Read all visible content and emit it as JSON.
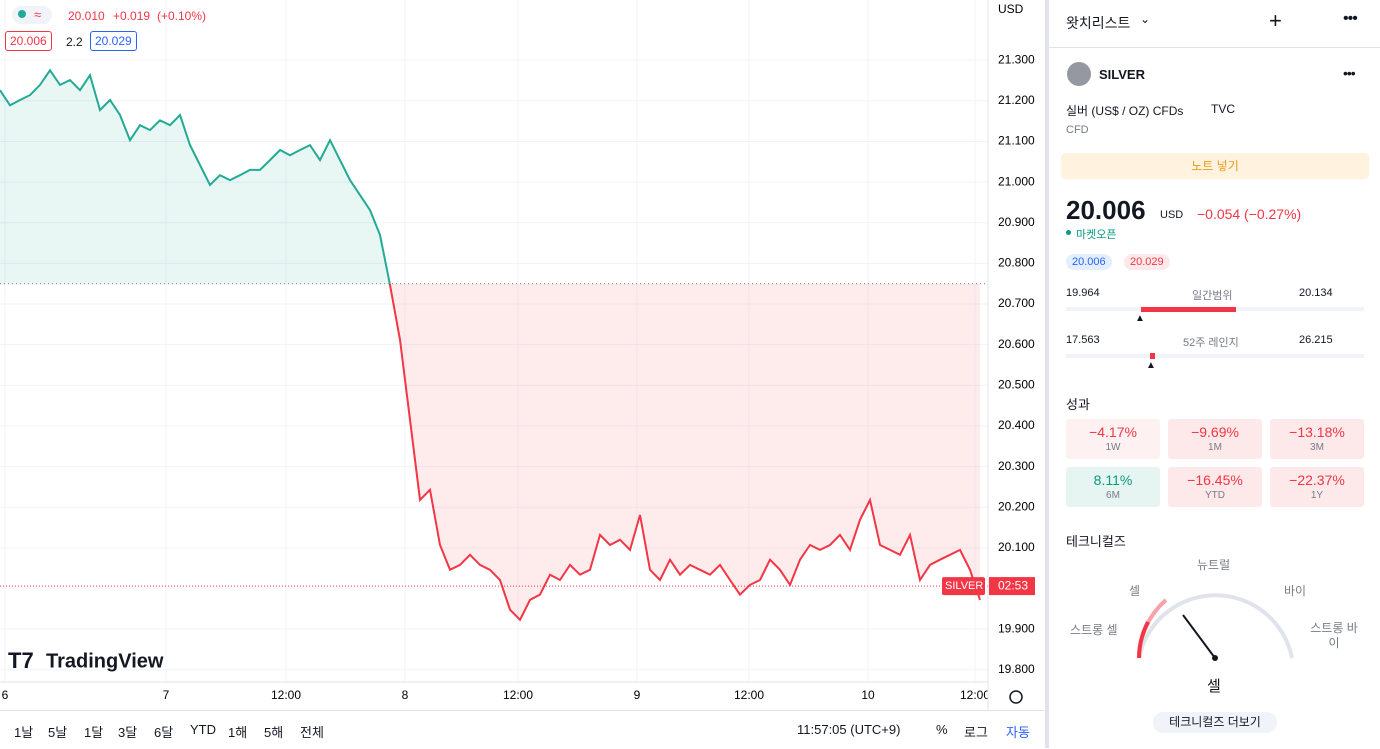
{
  "legend": {
    "badge": "≈",
    "last": "20.010",
    "change": "+0.019",
    "change_pct": "(+0.10%)",
    "bid": "20.006",
    "spread": "2.2",
    "ask": "20.029"
  },
  "chart_data": {
    "type": "line",
    "currency": "USD",
    "watermark": "TradingView",
    "series": [
      {
        "name": "SILVER",
        "values": [
          21.226,
          21.189,
          21.202,
          21.214,
          21.239,
          21.275,
          21.239,
          21.251,
          21.226,
          21.263,
          21.177,
          21.202,
          21.165,
          21.103,
          21.14,
          21.128,
          21.152,
          21.14,
          21.165,
          21.091,
          21.042,
          20.993,
          21.017,
          21.005,
          21.017,
          21.03,
          21.03,
          21.054,
          21.079,
          21.066,
          21.079,
          21.091,
          21.054,
          21.103,
          21.054,
          21.005,
          20.968,
          20.931,
          20.87,
          20.747,
          20.612,
          20.415,
          20.218,
          20.243,
          20.107,
          20.046,
          20.058,
          20.083,
          20.058,
          20.046,
          20.021,
          19.948,
          19.923,
          19.972,
          19.985,
          20.034,
          20.021,
          20.058,
          20.034,
          20.046,
          20.132,
          20.107,
          20.12,
          20.095,
          20.181,
          20.046,
          20.021,
          20.071,
          20.034,
          20.058,
          20.046,
          20.034,
          20.058,
          20.021,
          19.985,
          20.009,
          20.021,
          20.071,
          20.046,
          20.009,
          20.071,
          20.107,
          20.095,
          20.107,
          20.132,
          20.095,
          20.169,
          20.218,
          20.107,
          20.095,
          20.083,
          20.132,
          20.021,
          20.058,
          20.071,
          20.083,
          20.095,
          20.046,
          19.972
        ]
      }
    ],
    "up_color": "#22ab94",
    "down_color": "#f23645",
    "baseline": 20.75,
    "last_price": 20.006,
    "countdown": "02:53",
    "xlim": [
      0,
      98.8
    ],
    "xticks": [
      {
        "value": 0.5,
        "label": "6"
      },
      {
        "value": 16.6,
        "label": "7"
      },
      {
        "value": 28.6,
        "label": "12:00"
      },
      {
        "value": 40.5,
        "label": "8"
      },
      {
        "value": 51.8,
        "label": "12:00"
      },
      {
        "value": 63.7,
        "label": "9"
      },
      {
        "value": 74.9,
        "label": "12:00"
      },
      {
        "value": 86.8,
        "label": "10"
      },
      {
        "value": 97.5,
        "label": "12:00"
      }
    ],
    "ylim": [
      19.77,
      21.448
    ],
    "yticks": [
      {
        "value": 19.8,
        "label": "19.800"
      },
      {
        "value": 19.9,
        "label": "19.900"
      },
      {
        "value": 20.1,
        "label": "20.100"
      },
      {
        "value": 20.2,
        "label": "20.200"
      },
      {
        "value": 20.3,
        "label": "20.300"
      },
      {
        "value": 20.4,
        "label": "20.400"
      },
      {
        "value": 20.5,
        "label": "20.500"
      },
      {
        "value": 20.6,
        "label": "20.600"
      },
      {
        "value": 20.7,
        "label": "20.700"
      },
      {
        "value": 20.8,
        "label": "20.800"
      },
      {
        "value": 20.9,
        "label": "20.900"
      },
      {
        "value": 21.0,
        "label": "21.000"
      },
      {
        "value": 21.1,
        "label": "21.100"
      },
      {
        "value": 21.2,
        "label": "21.200"
      },
      {
        "value": 21.3,
        "label": "21.300"
      }
    ],
    "grid": true
  },
  "bottom_bar": {
    "ranges": [
      "1날",
      "5날",
      "1달",
      "3달",
      "6달",
      "YTD",
      "1해",
      "5해",
      "전체"
    ],
    "clock": "11:57:05 (UTC+9)",
    "percent": "%",
    "log": "로그",
    "auto": "자동"
  },
  "panel": {
    "header": "왓치리스트",
    "symbol": "SILVER",
    "description": "실버 (US$ / OZ) CFDs",
    "exchange": "TVC",
    "kind": "CFD",
    "note_button": "노트 넣기",
    "price": "20.006",
    "currency": "USD",
    "change": "−0.054",
    "change_pct": "(−0.27%)",
    "status": "마켓오픈",
    "bid": "20.006",
    "ask": "20.029",
    "day_range": {
      "low": "19.964",
      "label": "일간범위",
      "high": "20.134"
    },
    "year_range": {
      "low": "17.563",
      "label": "52주 레인지",
      "high": "26.215"
    },
    "performance_title": "성과",
    "performance": [
      {
        "value": "−4.17%",
        "period": "1W"
      },
      {
        "value": "−9.69%",
        "period": "1M"
      },
      {
        "value": "−13.18%",
        "period": "3M"
      },
      {
        "value": "8.11%",
        "period": "6M"
      },
      {
        "value": "−16.45%",
        "period": "YTD"
      },
      {
        "value": "−22.37%",
        "period": "1Y"
      }
    ],
    "technicals_title": "테크니컬즈",
    "gauge": {
      "neutral": "뉴트럴",
      "sell": "셀",
      "buy": "바이",
      "strong_sell": "스트롱 셀",
      "strong_buy": "스트롱 바이",
      "result": "셀"
    },
    "more_button": "테크니컬즈 더보기"
  }
}
